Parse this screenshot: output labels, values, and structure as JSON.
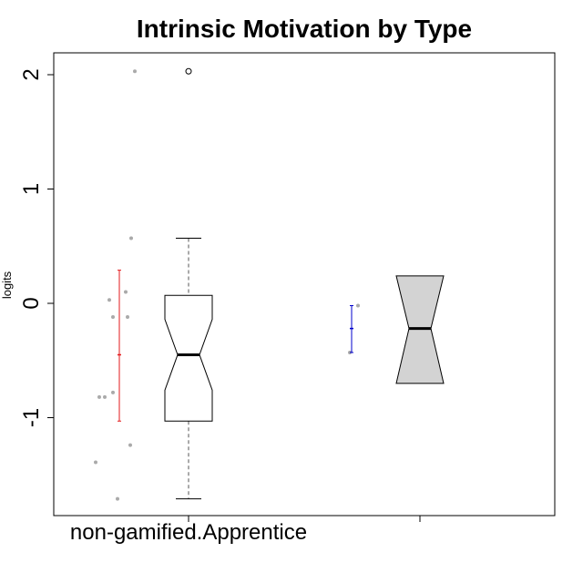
{
  "chart_data": {
    "type": "boxplot",
    "title": "Intrinsic Motivation by Type",
    "ylabel": "logits",
    "xlabel": "",
    "ylim": [
      -1.87,
      2.2
    ],
    "yticks": [
      -1,
      0,
      1,
      2
    ],
    "ytick_labels": [
      "-1",
      "0",
      "1",
      "2"
    ],
    "categories": [
      "non-gamified.Apprentice",
      ""
    ],
    "groups": [
      {
        "label": "non-gamified.Apprentice",
        "points": [
          2.03,
          0.57,
          0.1,
          0.03,
          -0.12,
          -0.12,
          -0.78,
          -0.82,
          -0.82,
          -1.24,
          -1.39,
          -1.71
        ],
        "box": {
          "min": -1.71,
          "q1": -1.03,
          "median": -0.45,
          "q3": 0.07,
          "max": 0.57,
          "notch_low": -0.76,
          "notch_high": -0.14
        },
        "outliers": [
          2.03
        ],
        "mean_ci": {
          "low": -1.03,
          "mean": -0.45,
          "high": 0.29
        },
        "ci_color": "#e31a1c",
        "box_fill": "#ffffff"
      },
      {
        "label": "",
        "points": [
          -0.02,
          -0.43
        ],
        "box": {
          "min": -0.43,
          "q1": -0.43,
          "median": -0.22,
          "q3": -0.02,
          "max": -0.02,
          "notch_low": -0.7,
          "notch_high": 0.24
        },
        "outliers": [],
        "mean_ci": {
          "low": -0.43,
          "mean": -0.22,
          "high": -0.02
        },
        "ci_color": "#0000cc",
        "box_fill": "#d3d3d3"
      }
    ],
    "grid": false
  }
}
